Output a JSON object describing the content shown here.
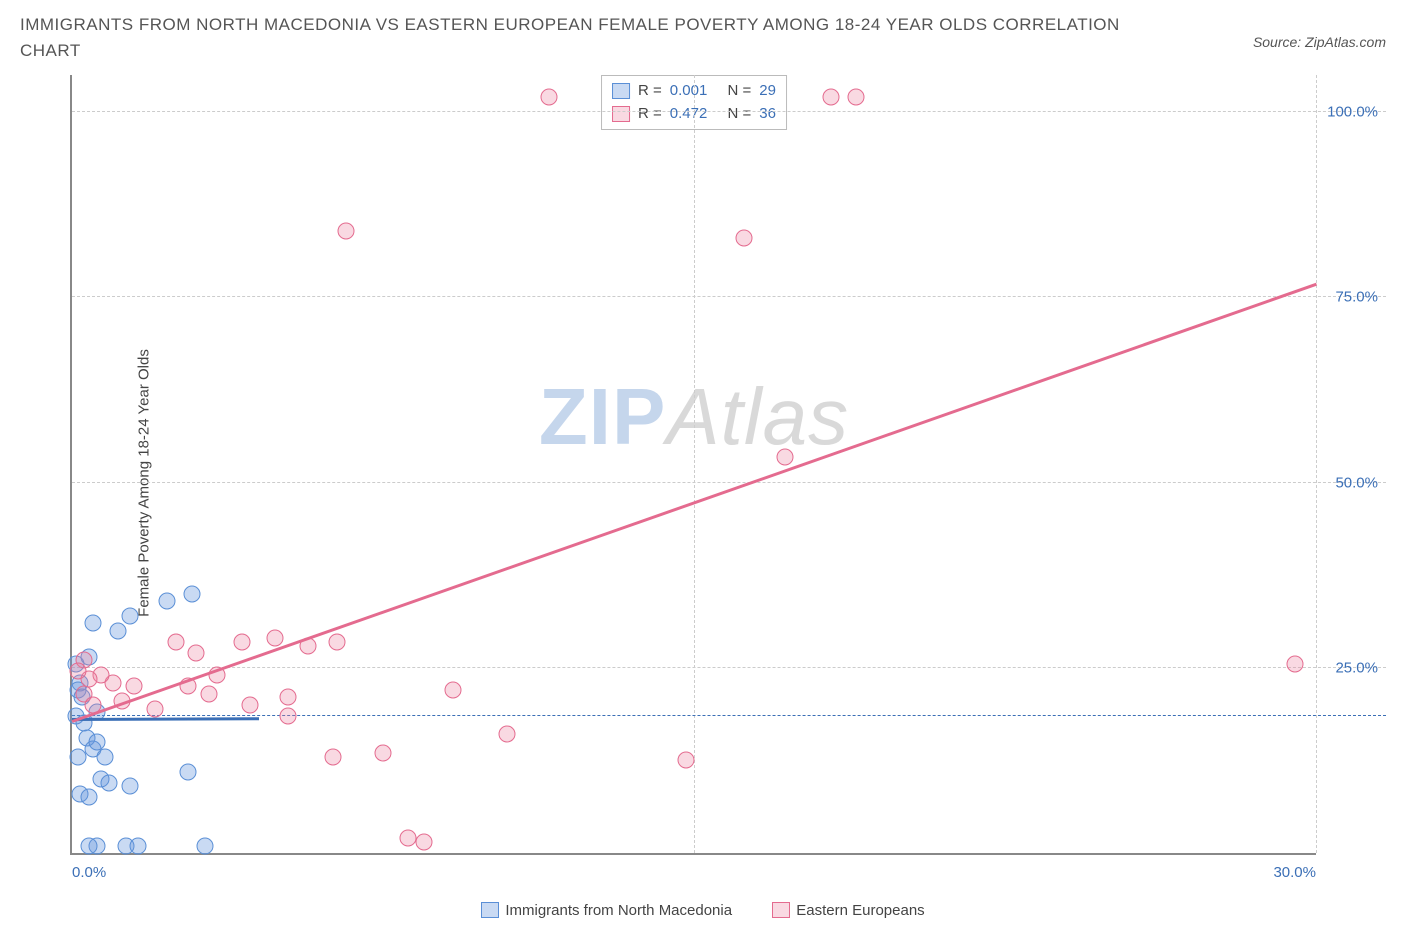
{
  "title": "IMMIGRANTS FROM NORTH MACEDONIA VS EASTERN EUROPEAN FEMALE POVERTY AMONG 18-24 YEAR OLDS CORRELATION CHART",
  "source": "Source: ZipAtlas.com",
  "y_axis_label": "Female Poverty Among 18-24 Year Olds",
  "watermark_zip": "ZIP",
  "watermark_atlas": "Atlas",
  "chart": {
    "type": "scatter",
    "xlim": [
      0,
      30
    ],
    "ylim": [
      0,
      105
    ],
    "x_ticks": [
      {
        "v": 0,
        "label": "0.0%"
      },
      {
        "v": 30,
        "label": "30.0%"
      }
    ],
    "y_ticks": [
      {
        "v": 25,
        "label": "25.0%"
      },
      {
        "v": 50,
        "label": "50.0%"
      },
      {
        "v": 75,
        "label": "75.0%"
      },
      {
        "v": 100,
        "label": "100.0%"
      }
    ],
    "v_gridlines_at": [
      15
    ],
    "ref_line_y": 18.5,
    "background_color": "#ffffff",
    "grid_color": "#cccccc",
    "axis_color": "#888888",
    "tick_label_color": "#3b6fb6",
    "series": [
      {
        "name": "Immigrants from North Macedonia",
        "color_fill": "rgba(100,150,220,0.35)",
        "color_stroke": "#5a8fd6",
        "class": "blue",
        "R_label": "R = ",
        "R": "0.001",
        "N_label": "N = ",
        "N": "29",
        "trend": {
          "x1": 0,
          "y1": 18.2,
          "x2": 4.5,
          "y2": 18.3
        },
        "points": [
          [
            0.1,
            25.5
          ],
          [
            0.2,
            23.0
          ],
          [
            0.15,
            22.0
          ],
          [
            0.25,
            21.0
          ],
          [
            0.4,
            26.5
          ],
          [
            0.1,
            18.5
          ],
          [
            0.3,
            17.5
          ],
          [
            0.35,
            15.5
          ],
          [
            0.5,
            14.0
          ],
          [
            0.15,
            13.0
          ],
          [
            0.7,
            10.0
          ],
          [
            0.9,
            9.5
          ],
          [
            1.4,
            9.0
          ],
          [
            2.8,
            11.0
          ],
          [
            0.2,
            8.0
          ],
          [
            0.4,
            7.5
          ],
          [
            0.8,
            13.0
          ],
          [
            0.6,
            15.0
          ],
          [
            1.3,
            1.0
          ],
          [
            0.6,
            1.0
          ],
          [
            1.6,
            1.0
          ],
          [
            3.2,
            1.0
          ],
          [
            0.4,
            1.0
          ],
          [
            1.4,
            32.0
          ],
          [
            2.3,
            34.0
          ],
          [
            0.5,
            31.0
          ],
          [
            1.1,
            30.0
          ],
          [
            2.9,
            35.0
          ],
          [
            0.6,
            19.0
          ]
        ]
      },
      {
        "name": "Eastern Europeans",
        "color_fill": "rgba(235,130,160,0.3)",
        "color_stroke": "#e46b8f",
        "class": "pink",
        "R_label": "R = ",
        "R": "0.472",
        "N_label": "N = ",
        "N": "36",
        "trend": {
          "x1": 0,
          "y1": 18.0,
          "x2": 30,
          "y2": 77.0
        },
        "points": [
          [
            11.5,
            102.0
          ],
          [
            18.3,
            102.0
          ],
          [
            18.9,
            102.0
          ],
          [
            6.6,
            84.0
          ],
          [
            16.2,
            83.0
          ],
          [
            17.2,
            53.5
          ],
          [
            29.5,
            25.5
          ],
          [
            14.8,
            12.5
          ],
          [
            10.5,
            16.0
          ],
          [
            9.2,
            22.0
          ],
          [
            8.5,
            1.5
          ],
          [
            8.1,
            2.0
          ],
          [
            7.5,
            13.5
          ],
          [
            6.3,
            13.0
          ],
          [
            6.4,
            28.5
          ],
          [
            5.7,
            28.0
          ],
          [
            4.9,
            29.0
          ],
          [
            5.2,
            21.0
          ],
          [
            4.3,
            20.0
          ],
          [
            3.5,
            24.0
          ],
          [
            3.3,
            21.5
          ],
          [
            2.8,
            22.5
          ],
          [
            2.5,
            28.5
          ],
          [
            2.0,
            19.5
          ],
          [
            1.5,
            22.5
          ],
          [
            1.2,
            20.5
          ],
          [
            1.0,
            23.0
          ],
          [
            0.7,
            24.0
          ],
          [
            0.4,
            23.5
          ],
          [
            0.3,
            21.5
          ],
          [
            0.3,
            26.0
          ],
          [
            0.15,
            24.5
          ],
          [
            3.0,
            27.0
          ],
          [
            4.1,
            28.5
          ],
          [
            5.2,
            18.5
          ],
          [
            0.5,
            20.0
          ]
        ]
      }
    ]
  },
  "legend": {
    "series1": "Immigrants from North Macedonia",
    "series2": "Eastern Europeans"
  }
}
